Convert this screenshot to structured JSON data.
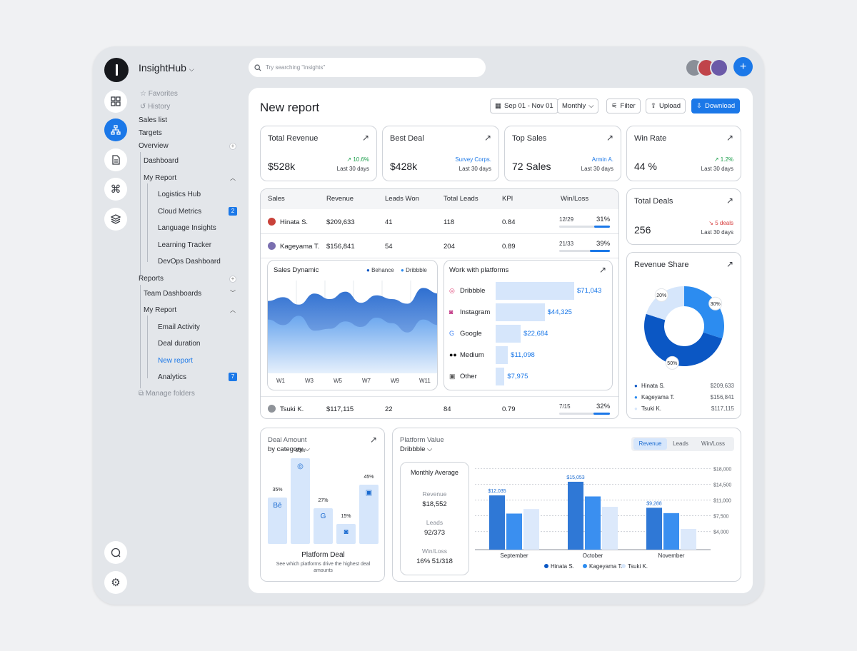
{
  "app": {
    "workspace": "InsightHub",
    "search_placeholder": "Try searching \"insights\""
  },
  "sidebar": {
    "favorites": "Favorites",
    "history": "History",
    "sales_list": "Sales list",
    "targets": "Targets",
    "overview": "Overview",
    "dashboard": "Dashboard",
    "my_report": "My Report",
    "my_report_items": [
      "Logistics Hub",
      "Cloud Metrics",
      "Language Insights",
      "Learning Tracker",
      "DevOps Dashboard"
    ],
    "cloud_badge": "2",
    "reports": "Reports",
    "team_dashboards": "Team Dashboards",
    "my_report2": "My Report",
    "my_report2_items": [
      "Email Activity",
      "Deal duration",
      "New report",
      "Analytics"
    ],
    "analytics_badge": "7",
    "manage_folders": "Manage folders"
  },
  "header": {
    "title": "New report",
    "date_range": "Sep 01 - Nov 01",
    "period": "Monthly",
    "filter": "Filter",
    "upload": "Upload",
    "download": "Download"
  },
  "kpis": [
    {
      "title": "Total Revenue",
      "value": "$528k",
      "change": "10.6%",
      "period": "Last 30 days"
    },
    {
      "title": "Best Deal",
      "value": "$428k",
      "change": "Survey Corps.",
      "period": "Last 30 days"
    },
    {
      "title": "Top Sales",
      "value": "72 Sales",
      "change": "Armin A.",
      "period": "Last 30 days"
    },
    {
      "title": "Win Rate",
      "value": "44 %",
      "change": "1.2%",
      "period": "Last 30 days"
    }
  ],
  "total_deals": {
    "title": "Total Deals",
    "value": "256",
    "change": "5 deals",
    "period": "Last 30 days"
  },
  "table": {
    "headers": [
      "Sales",
      "Revenue",
      "Leads Won",
      "Total Leads",
      "KPI",
      "Win/Loss"
    ],
    "rows": [
      {
        "name": "Hinata S.",
        "revenue": "$209,633",
        "won": "41",
        "total": "118",
        "kpi": "0.84",
        "ratio": "12/29",
        "pct": "31%",
        "fill": 0.31
      },
      {
        "name": "Kageyama T.",
        "revenue": "$156,841",
        "won": "54",
        "total": "204",
        "kpi": "0.89",
        "ratio": "21/33",
        "pct": "39%",
        "fill": 0.39
      },
      {
        "name": "Tsuki K.",
        "revenue": "$117,115",
        "won": "22",
        "total": "84",
        "kpi": "0.79",
        "ratio": "7/15",
        "pct": "32%",
        "fill": 0.32
      }
    ]
  },
  "sales_dynamic": {
    "title": "Sales Dynamic",
    "legend": [
      "Behance",
      "Dribbble"
    ],
    "weeks": [
      "W1",
      "W3",
      "W5",
      "W7",
      "W9",
      "W11"
    ]
  },
  "platforms": {
    "title": "Work with platforms",
    "items": [
      {
        "name": "Dribbble",
        "value": "$71,043",
        "amount": 71043
      },
      {
        "name": "Instagram",
        "value": "$44,325",
        "amount": 44325
      },
      {
        "name": "Google",
        "value": "$22,684",
        "amount": 22684
      },
      {
        "name": "Medium",
        "value": "$11,098",
        "amount": 11098
      },
      {
        "name": "Other",
        "value": "$7,975",
        "amount": 7975
      }
    ]
  },
  "revenue_share": {
    "title": "Revenue Share",
    "slices": [
      {
        "name": "Hinata S.",
        "value": "$209,633",
        "pct": "50%",
        "share": 50,
        "color": "#0b57c4"
      },
      {
        "name": "Kageyama T.",
        "value": "$156,841",
        "pct": "30%",
        "share": 30,
        "color": "#2c8cf0"
      },
      {
        "name": "Tsuki K.",
        "value": "$117,115",
        "pct": "20%",
        "share": 20,
        "color": "#d6e6fb"
      }
    ]
  },
  "deal_amount": {
    "title": "Deal Amount",
    "subtitle": "by category",
    "footer_title": "Platform Deal",
    "footer_text": "See which platforms drive the highest deal amounts",
    "bars": [
      {
        "label": "35%",
        "value": 35,
        "icon": "behance-icon",
        "glyph": "Bē"
      },
      {
        "label": "65%",
        "value": 65,
        "icon": "dribbble-icon",
        "glyph": "◎"
      },
      {
        "label": "27%",
        "value": 27,
        "icon": "google-icon",
        "glyph": "G"
      },
      {
        "label": "15%",
        "value": 15,
        "icon": "instagram-icon",
        "glyph": "◙"
      },
      {
        "label": "45%",
        "value": 45,
        "icon": "other-icon",
        "glyph": "▣"
      }
    ]
  },
  "platform_value": {
    "title": "Platform Value",
    "platform": "Dribbble",
    "tabs": [
      "Revenue",
      "Leads",
      "Win/Loss"
    ],
    "monthly": {
      "title": "Monthly Average",
      "revenue_label": "Revenue",
      "revenue": "$18,552",
      "leads_label": "Leads",
      "leads": "92/373",
      "winloss_label": "Win/Loss",
      "winloss": "16% 51/318"
    }
  },
  "chart_data": [
    {
      "type": "area",
      "title": "Sales Dynamic",
      "x": [
        "W1",
        "W2",
        "W3",
        "W4",
        "W5",
        "W6",
        "W7",
        "W8",
        "W9",
        "W10",
        "W11",
        "W12"
      ],
      "series": [
        {
          "name": "Behance",
          "values": [
            78,
            82,
            74,
            86,
            80,
            88,
            76,
            84,
            80,
            75,
            92,
            86
          ]
        },
        {
          "name": "Dribbble",
          "values": [
            58,
            52,
            62,
            46,
            48,
            56,
            50,
            60,
            54,
            44,
            58,
            52
          ]
        }
      ],
      "ylim": [
        0,
        100
      ],
      "grid": true
    },
    {
      "type": "bar",
      "title": "Work with platforms",
      "categories": [
        "Dribbble",
        "Instagram",
        "Google",
        "Medium",
        "Other"
      ],
      "values": [
        71043,
        44325,
        22684,
        11098,
        7975
      ]
    },
    {
      "type": "pie",
      "title": "Revenue Share",
      "categories": [
        "Hinata S.",
        "Kageyama T.",
        "Tsuki K."
      ],
      "values": [
        50,
        30,
        20
      ]
    },
    {
      "type": "bar",
      "title": "Deal Amount",
      "categories": [
        "Behance",
        "Dribbble",
        "Google",
        "Instagram",
        "Other"
      ],
      "values": [
        35,
        65,
        27,
        15,
        45
      ]
    },
    {
      "type": "bar",
      "title": "Platform Value",
      "categories": [
        "September",
        "October",
        "November"
      ],
      "series": [
        {
          "name": "Hinata S.",
          "values": [
            12035,
            15053,
            9288
          ]
        },
        {
          "name": "Kageyama T.",
          "values": [
            8000,
            11800,
            8100
          ]
        },
        {
          "name": "Tsuki K.",
          "values": [
            9000,
            9500,
            4600
          ]
        }
      ],
      "value_labels": [
        "$12,035",
        "$15,053",
        "$9,288"
      ],
      "yticks": [
        "$18,000",
        "$14,500",
        "$11,000",
        "$7,500",
        "$4,000"
      ],
      "ylim": [
        0,
        19000
      ],
      "legend": "bottom",
      "grid": true
    }
  ]
}
